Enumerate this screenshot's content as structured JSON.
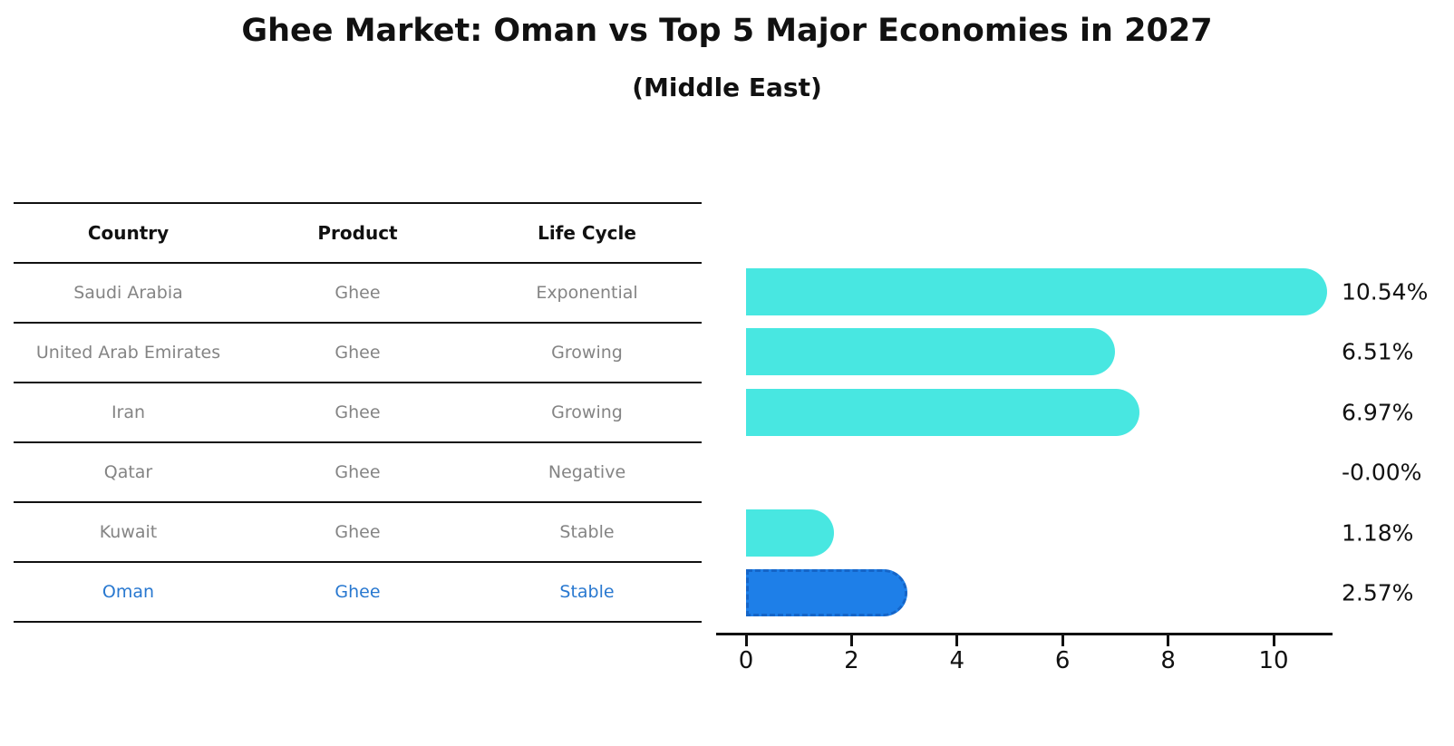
{
  "chart_data": {
    "type": "bar",
    "orientation": "horizontal",
    "title": "Ghee Market: Oman vs Top 5 Major Economies in 2027",
    "subtitle": "(Middle East)",
    "categories": [
      "Saudi Arabia",
      "United Arab Emirates",
      "Iran",
      "Qatar",
      "Kuwait",
      "Oman"
    ],
    "values": [
      10.54,
      6.51,
      6.97,
      -0.0,
      1.18,
      2.57
    ],
    "value_labels": [
      "10.54%",
      "6.51%",
      "6.97%",
      "-0.00%",
      "1.18%",
      "2.57%"
    ],
    "highlight_index": 5,
    "xlim": [
      0,
      11.2
    ],
    "xticks": [
      0,
      2,
      4,
      6,
      8,
      10
    ],
    "grid": false,
    "legend": "none",
    "bar_color": "#48e7e1",
    "highlight_color": "#1e7fe8",
    "highlight_edge_color": "#1565c8",
    "highlight_text_color": "#2878d0",
    "axis_color": "#111111"
  },
  "table": {
    "headers": [
      "Country",
      "Product",
      "Life Cycle"
    ],
    "rows": [
      {
        "country": "Saudi Arabia",
        "product": "Ghee",
        "life_cycle": "Exponential"
      },
      {
        "country": "United Arab Emirates",
        "product": "Ghee",
        "life_cycle": "Growing"
      },
      {
        "country": "Iran",
        "product": "Ghee",
        "life_cycle": "Growing"
      },
      {
        "country": "Qatar",
        "product": "Ghee",
        "life_cycle": "Negative"
      },
      {
        "country": "Kuwait",
        "product": "Ghee",
        "life_cycle": "Stable"
      },
      {
        "country": "Oman",
        "product": "Ghee",
        "life_cycle": "Stable"
      }
    ],
    "highlight_row": 5
  }
}
